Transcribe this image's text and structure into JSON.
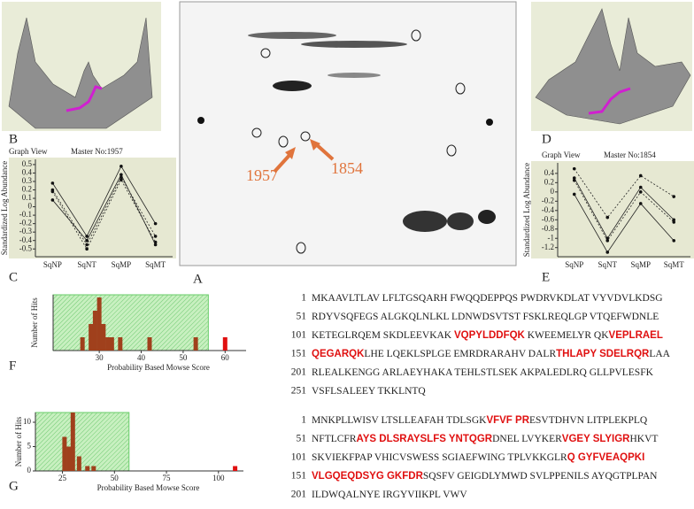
{
  "panels": {
    "A": {
      "letter": "A",
      "spot_labels": [
        "1957",
        "1854"
      ]
    },
    "B": {
      "letter": "B"
    },
    "C": {
      "letter": "C",
      "view": "Graph View",
      "master": "Master No:1957",
      "ylabel": "Standardized Log Abundance",
      "categories": [
        "SqNP",
        "SqNT",
        "SqMP",
        "SqMT"
      ],
      "ylim": [
        -0.55,
        0.52
      ],
      "yticks": [
        0.5,
        0.4,
        0.3,
        0.2,
        0.1,
        0,
        -0.1,
        -0.2,
        -0.3,
        -0.4,
        -0.5
      ],
      "series": [
        {
          "values": [
            0.28,
            -0.35,
            0.48,
            -0.2
          ],
          "dashed": false
        },
        {
          "values": [
            0.2,
            -0.45,
            0.35,
            -0.35
          ],
          "dashed": true
        },
        {
          "values": [
            0.18,
            -0.5,
            0.32,
            -0.42
          ],
          "dashed": true
        },
        {
          "values": [
            0.08,
            -0.4,
            0.38,
            -0.45
          ],
          "dashed": false
        }
      ]
    },
    "D": {
      "letter": "D"
    },
    "E": {
      "letter": "E",
      "view": "Graph View",
      "master": "Master No:1854",
      "ylabel": "Standardized Log Abundance",
      "categories": [
        "SqNP",
        "SqNT",
        "SqMP",
        "SqMT"
      ],
      "ylim": [
        -1.32,
        0.55
      ],
      "yticks": [
        0.4,
        0.2,
        0,
        -0.2,
        -0.4,
        -0.6,
        -0.8,
        -1,
        -1.2
      ],
      "series": [
        {
          "values": [
            0.5,
            -0.55,
            0.35,
            -0.1
          ],
          "dashed": true
        },
        {
          "values": [
            0.3,
            -1.0,
            0.1,
            -0.6
          ],
          "dashed": false
        },
        {
          "values": [
            0.25,
            -1.05,
            0,
            -0.65
          ],
          "dashed": true
        },
        {
          "values": [
            -0.05,
            -1.3,
            -0.25,
            -1.05
          ],
          "dashed": false
        }
      ]
    },
    "F": {
      "letter": "F",
      "ylabel": "Number of Hits",
      "xlabel": "Probability Based Mowse Score",
      "xlim": [
        19,
        65
      ],
      "ylim": [
        0,
        4.2
      ],
      "xticks": [
        30,
        40,
        50,
        60
      ],
      "yticks": [],
      "threshold": 56,
      "bars": {
        "x": [
          26,
          28,
          29,
          30,
          31,
          32,
          33,
          35,
          42,
          53
        ],
        "counts": [
          1,
          2,
          3,
          4,
          2,
          1,
          1,
          1,
          1,
          1
        ],
        "color": "#a0401c"
      },
      "top_hit": {
        "x": 60,
        "count": 1,
        "color": "#e01010"
      }
    },
    "G": {
      "letter": "G",
      "ylabel": "Number of Hits",
      "xlabel": "Probability Based Mowse Score",
      "xlim": [
        12,
        112
      ],
      "ylim": [
        0,
        12
      ],
      "xticks": [
        25,
        50,
        75,
        100
      ],
      "yticks": [
        0,
        5,
        10
      ],
      "threshold": 57,
      "bars": {
        "x": [
          26,
          28,
          30,
          33,
          37,
          40
        ],
        "counts": [
          7,
          5,
          12,
          3,
          1,
          1
        ],
        "color": "#a0401c"
      },
      "top_hit": {
        "x": 108,
        "count": 1,
        "color": "#e01010"
      }
    }
  },
  "sequences": [
    {
      "rows": [
        {
          "num": "1",
          "segments": [
            {
              "text": "MKAAVLTLAV LFLTGSQARH FWQQDEPPQS PWDRVKDLAT VYVDVLKDSG",
              "highlight": false
            }
          ]
        },
        {
          "num": "51",
          "segments": [
            {
              "text": "RDYVSQFEGS ALGKQLNLKL LDNWDSVTST FSKLREQLGP VTQEFWDNLE",
              "highlight": false
            }
          ]
        },
        {
          "num": "101",
          "segments": [
            {
              "text": "KETEGLRQEM SKDLEEVKAK ",
              "highlight": false
            },
            {
              "text": "VQPYLDDFQK",
              "highlight": true
            },
            {
              "text": " KWEEMELYR QK",
              "highlight": false
            },
            {
              "text": "VEPLRAEL",
              "highlight": true
            }
          ]
        },
        {
          "num": "151",
          "segments": [
            {
              "text": "QEGARQK",
              "highlight": true
            },
            {
              "text": "LHE LQEKLSPLGE EMRDRARAHV DALR",
              "highlight": false
            },
            {
              "text": "THLAPY SDELRQR",
              "highlight": true
            },
            {
              "text": "LAA",
              "highlight": false
            }
          ]
        },
        {
          "num": "201",
          "segments": [
            {
              "text": "RLEALKENGG ARLAEYHAKA TEHLSTLSEK AKPALEDLRQ GLLPVLESFK",
              "highlight": false
            }
          ]
        },
        {
          "num": "251",
          "segments": [
            {
              "text": "VSFLSALEEY TKKLNTQ",
              "highlight": false
            }
          ]
        }
      ]
    },
    {
      "rows": [
        {
          "num": "1",
          "segments": [
            {
              "text": "MNKPLLWISV LTSLLEAFAH TDLSGK",
              "highlight": false
            },
            {
              "text": "VFVF PR",
              "highlight": true
            },
            {
              "text": "ESVTDHVN LITPLEKPLQ",
              "highlight": false
            }
          ]
        },
        {
          "num": "51",
          "segments": [
            {
              "text": "NFTLCFR",
              "highlight": false
            },
            {
              "text": "AYS DLSRAYSLFS YNTQGR",
              "highlight": true
            },
            {
              "text": "DNEL LVYKER",
              "highlight": false
            },
            {
              "text": "VGEY SLYIGR",
              "highlight": true
            },
            {
              "text": "HKVT",
              "highlight": false
            }
          ]
        },
        {
          "num": "101",
          "segments": [
            {
              "text": "SKVIEKFPAP VHICVSWESS SGIAEFWING TPLVKKGLR",
              "highlight": false
            },
            {
              "text": "Q GYFVEAQPKI",
              "highlight": true
            }
          ]
        },
        {
          "num": "151",
          "segments": [
            {
              "text": "VLGQEQDSYG GKFDR",
              "highlight": true
            },
            {
              "text": "SQSFV GEIGDLYMWD SVLPPENILS AYQGTPLPAN",
              "highlight": false
            }
          ]
        },
        {
          "num": "201",
          "segments": [
            {
              "text": "ILDWQALNYE IRGYVIIKPL VWV",
              "highlight": false
            }
          ]
        }
      ]
    }
  ]
}
